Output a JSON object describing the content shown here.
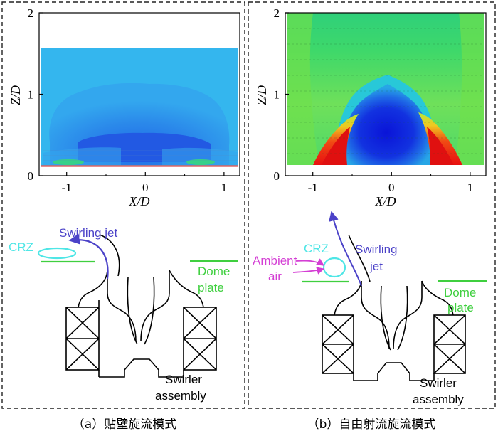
{
  "figure": {
    "panel_a": {
      "caption": "（a）贴壁旋流模式",
      "plot": {
        "ylabel": "Z/D",
        "xlabel": "X/D",
        "yticks": [
          "0",
          "1",
          "2"
        ],
        "xticks": [
          "-1",
          "0",
          "1"
        ],
        "xlim": [
          -1.35,
          1.2
        ],
        "ylim": [
          0,
          2
        ],
        "field_extent_z": [
          0.12,
          1.57
        ]
      },
      "schematic": {
        "crz": "CRZ",
        "swirling_jet": "Swirling jet",
        "dome_line1": "Dome",
        "dome_line2": "plate",
        "swirler_line1": "Swirler",
        "swirler_line2": "assembly"
      }
    },
    "panel_b": {
      "caption": "（b）自由射流旋流模式",
      "plot": {
        "ylabel": "Z/D",
        "xlabel": "X/D",
        "yticks": [
          "0",
          "1",
          "2"
        ],
        "xticks": [
          "-1",
          "0",
          "1"
        ],
        "xlim": [
          -1.35,
          1.2
        ],
        "ylim": [
          0,
          2
        ],
        "field_extent_z": [
          0.12,
          1.95
        ]
      },
      "schematic": {
        "ambient_line1": "Ambient",
        "ambient_line2": "air",
        "crz": "CRZ",
        "swirling_line1": "Swirling",
        "swirling_line2": "jet",
        "dome_line1": "Dome",
        "dome_line2": "plate",
        "swirler_line1": "Swirler",
        "swirler_line2": "assembly"
      }
    },
    "colors": {
      "crz": "#4fe6e6",
      "swirling_jet": "#4b42c8",
      "dome_plate": "#3fcf3f",
      "ambient_air": "#d43fd4",
      "frame_dash": "#222222"
    }
  }
}
